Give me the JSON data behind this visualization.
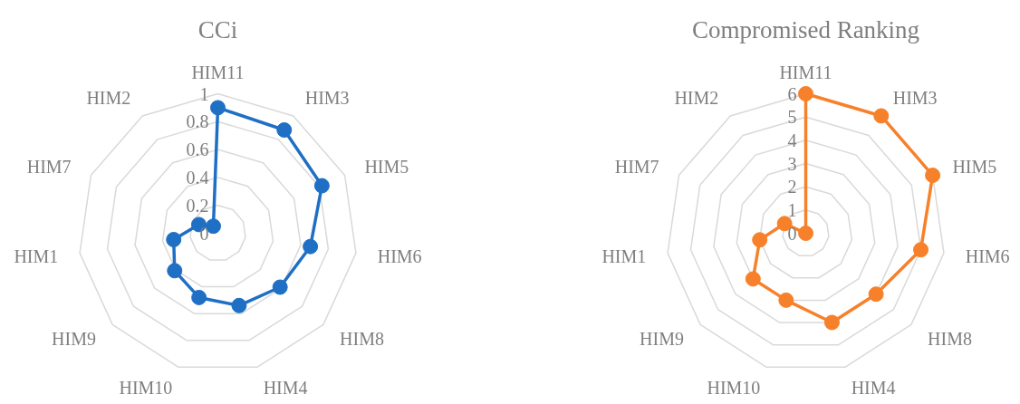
{
  "chart_data": [
    {
      "type": "radar",
      "title": "CCi",
      "categories": [
        "HIM11",
        "HIM3",
        "HIM5",
        "HIM6",
        "HIM8",
        "HIM4",
        "HIM10",
        "HIM9",
        "HIM1",
        "HIM7",
        "HIM2"
      ],
      "series": [
        {
          "color": "#1f6fc5",
          "values": [
            0.9,
            0.88,
            0.82,
            0.67,
            0.59,
            0.54,
            0.48,
            0.41,
            0.32,
            0.15,
            0.06
          ]
        }
      ],
      "ylim": [
        0,
        1
      ],
      "yticks": [
        0,
        0.2,
        0.4,
        0.6,
        0.8,
        1
      ],
      "marker": "circle",
      "grid": true
    },
    {
      "type": "radar",
      "title": "Compromised Ranking",
      "categories": [
        "HIM11",
        "HIM3",
        "HIM5",
        "HIM6",
        "HIM8",
        "HIM4",
        "HIM10",
        "HIM9",
        "HIM1",
        "HIM7",
        "HIM2"
      ],
      "series": [
        {
          "color": "#f7812a",
          "values": [
            6,
            6,
            6,
            5,
            4,
            4,
            3,
            3,
            2,
            1,
            0
          ]
        }
      ],
      "ylim": [
        0,
        6
      ],
      "yticks": [
        0,
        1,
        2,
        3,
        4,
        5,
        6
      ],
      "marker": "circle",
      "grid": true
    }
  ]
}
